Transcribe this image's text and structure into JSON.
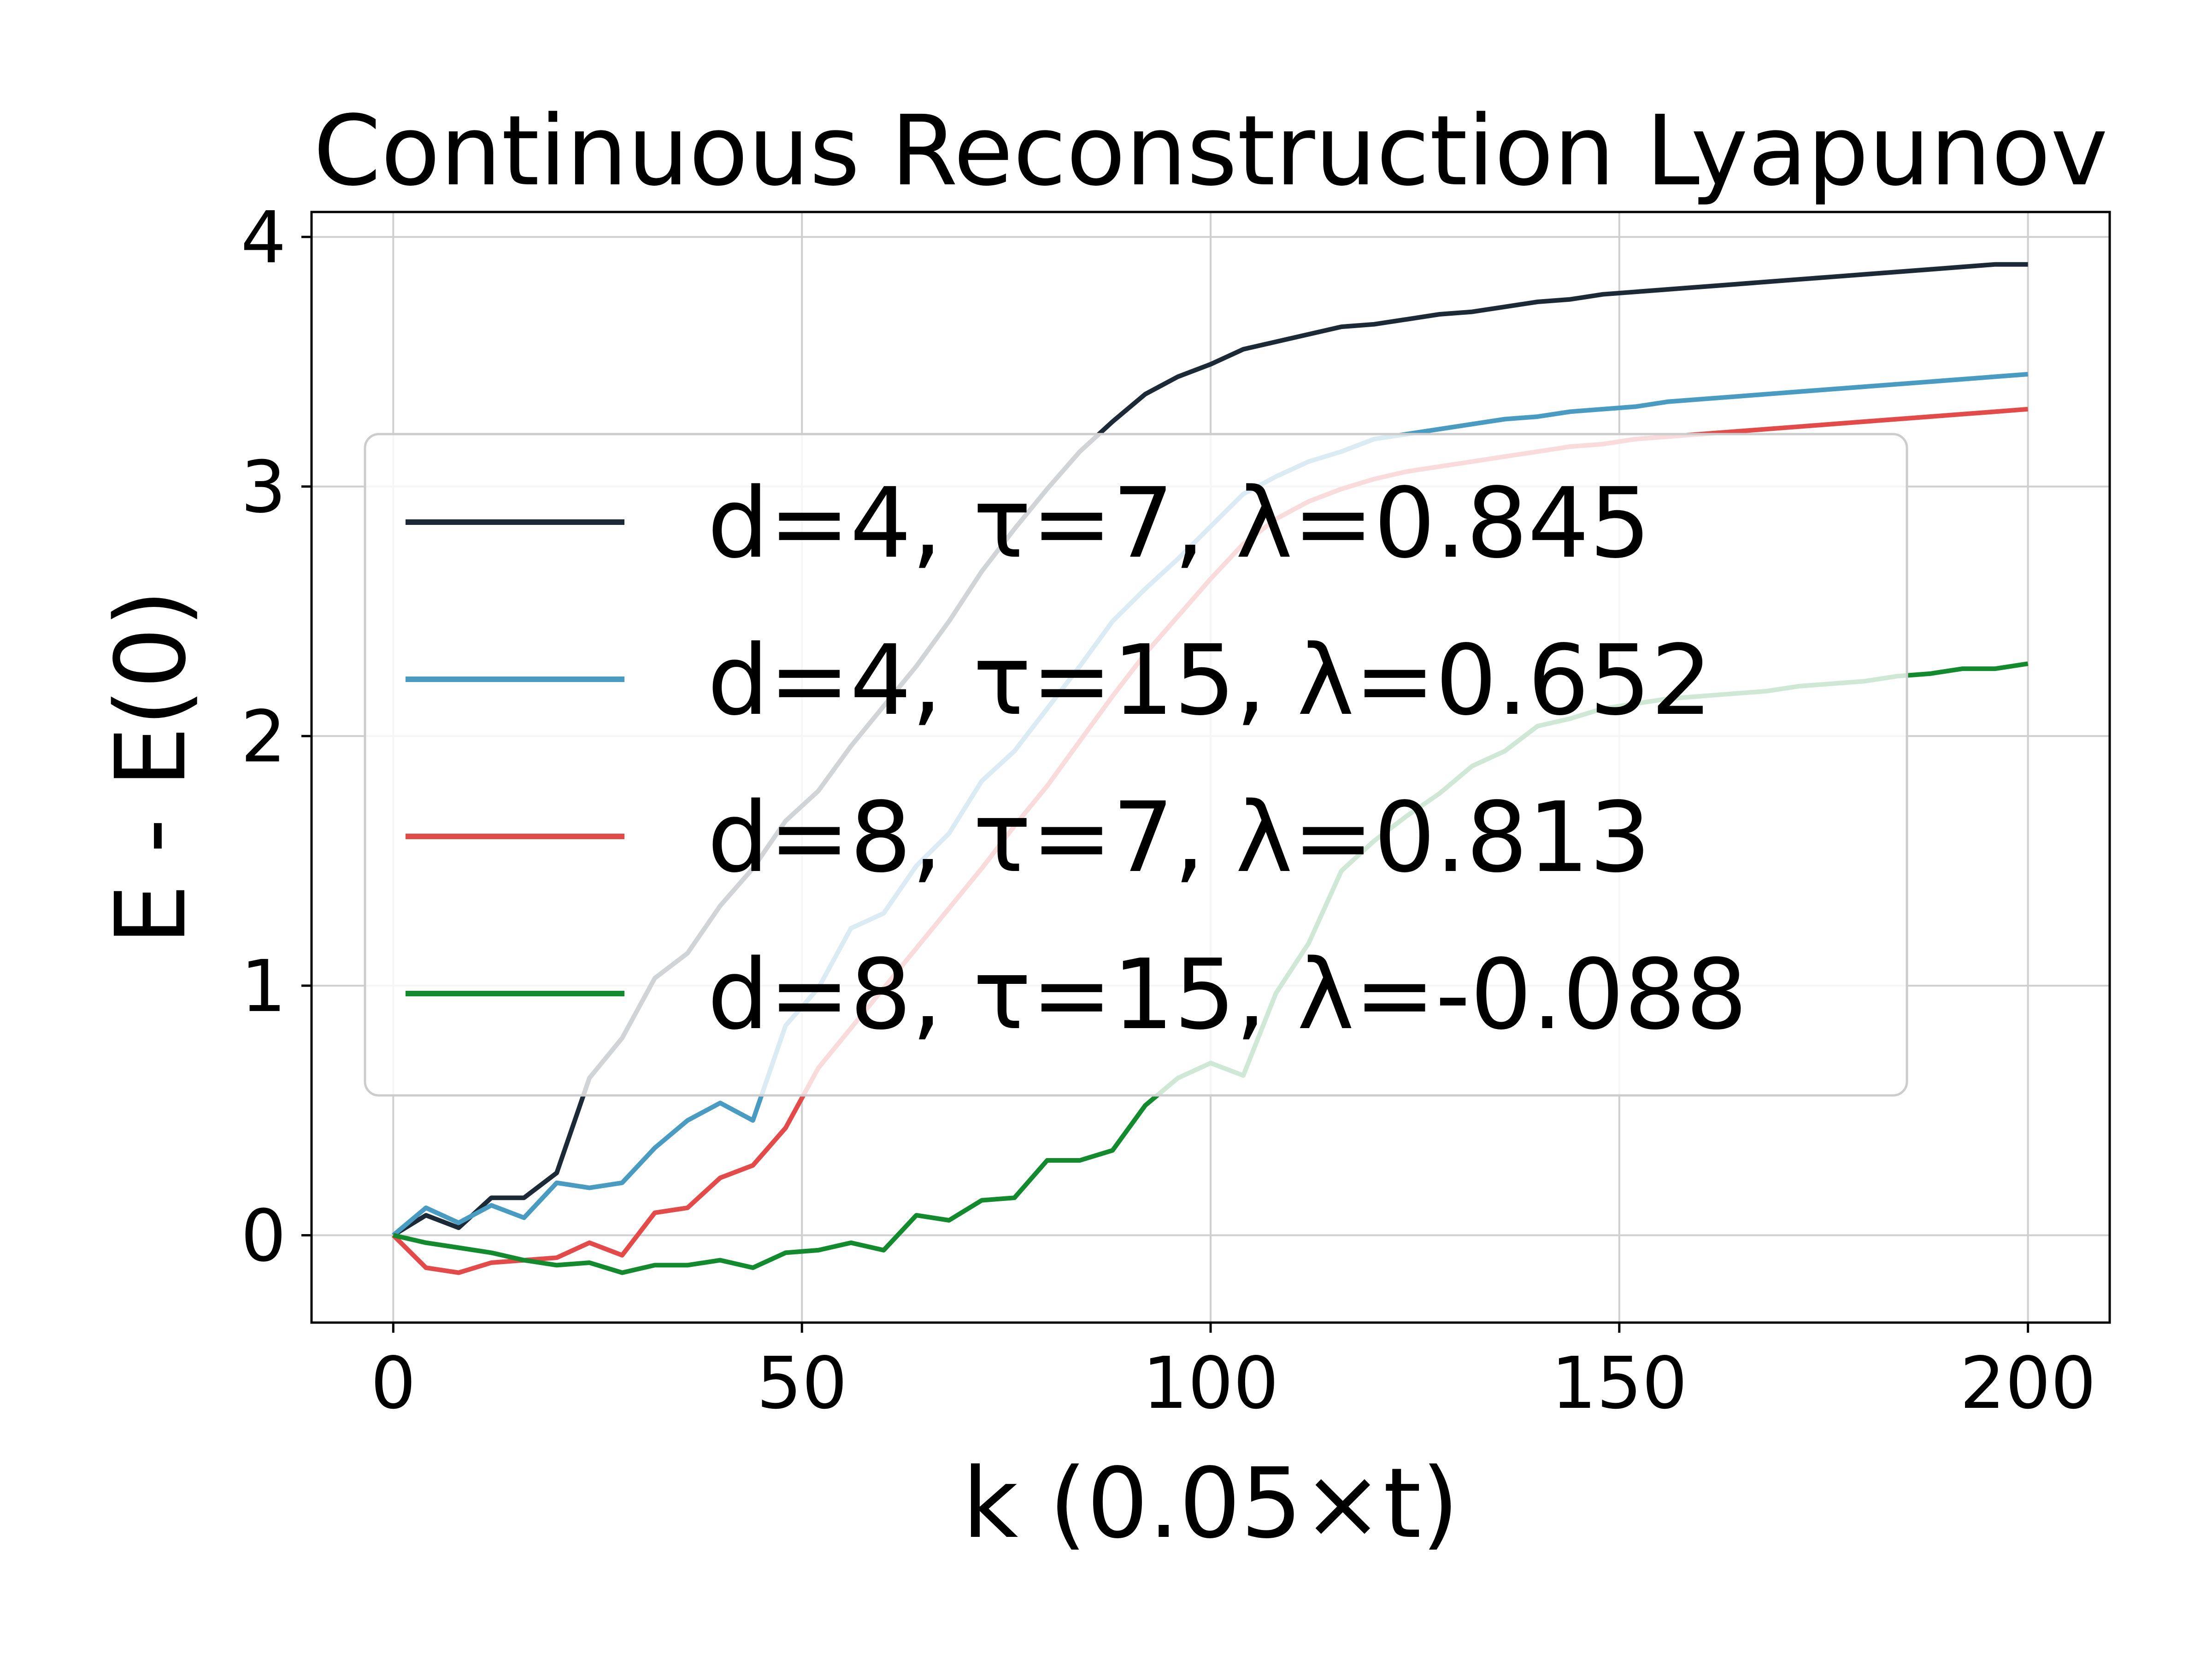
{
  "chart_data": {
    "type": "line",
    "title": "Continuous Reconstruction Lyapunov",
    "xlabel": "k (0.05×t)",
    "ylabel": "E - E(0)",
    "xlim": [
      -10,
      210
    ],
    "ylim": [
      -0.35,
      4.1
    ],
    "xticks": [
      0,
      50,
      100,
      150,
      200
    ],
    "yticks": [
      0,
      1,
      2,
      3,
      4
    ],
    "grid": true,
    "legend": "center",
    "x": [
      0,
      4,
      8,
      12,
      16,
      20,
      24,
      28,
      32,
      36,
      40,
      44,
      48,
      52,
      56,
      60,
      64,
      68,
      72,
      76,
      80,
      84,
      88,
      92,
      96,
      100,
      104,
      108,
      112,
      116,
      120,
      124,
      128,
      132,
      136,
      140,
      144,
      148,
      152,
      156,
      160,
      164,
      168,
      172,
      176,
      180,
      184,
      188,
      192,
      196,
      200
    ],
    "series": [
      {
        "name": "d=4, τ=7, λ=0.845",
        "color": "#1b2a36",
        "values": [
          0.0,
          0.08,
          0.03,
          0.15,
          0.15,
          0.25,
          0.63,
          0.79,
          1.03,
          1.13,
          1.32,
          1.47,
          1.66,
          1.78,
          1.96,
          2.12,
          2.28,
          2.46,
          2.66,
          2.83,
          2.99,
          3.14,
          3.26,
          3.37,
          3.44,
          3.49,
          3.55,
          3.58,
          3.61,
          3.64,
          3.65,
          3.67,
          3.69,
          3.7,
          3.72,
          3.74,
          3.75,
          3.77,
          3.78,
          3.79,
          3.8,
          3.81,
          3.82,
          3.83,
          3.84,
          3.85,
          3.86,
          3.87,
          3.88,
          3.89,
          3.89
        ]
      },
      {
        "name": "d=4, τ=15, λ=0.652",
        "color": "#4a9bc1",
        "values": [
          0.0,
          0.11,
          0.05,
          0.12,
          0.07,
          0.21,
          0.19,
          0.21,
          0.35,
          0.46,
          0.53,
          0.46,
          0.84,
          0.99,
          1.23,
          1.29,
          1.48,
          1.61,
          1.82,
          1.94,
          2.11,
          2.28,
          2.46,
          2.59,
          2.71,
          2.84,
          2.97,
          3.04,
          3.1,
          3.14,
          3.19,
          3.21,
          3.23,
          3.25,
          3.27,
          3.28,
          3.3,
          3.31,
          3.32,
          3.34,
          3.35,
          3.36,
          3.37,
          3.38,
          3.39,
          3.4,
          3.41,
          3.42,
          3.43,
          3.44,
          3.45
        ]
      },
      {
        "name": "d=8, τ=7, λ=0.813",
        "color": "#e34a4a",
        "values": [
          0.0,
          -0.13,
          -0.15,
          -0.11,
          -0.1,
          -0.09,
          -0.03,
          -0.08,
          0.09,
          0.11,
          0.23,
          0.28,
          0.43,
          0.67,
          0.83,
          0.99,
          1.15,
          1.31,
          1.47,
          1.64,
          1.8,
          1.98,
          2.16,
          2.33,
          2.48,
          2.63,
          2.77,
          2.87,
          2.94,
          2.99,
          3.03,
          3.06,
          3.08,
          3.1,
          3.12,
          3.14,
          3.16,
          3.17,
          3.19,
          3.2,
          3.21,
          3.22,
          3.23,
          3.24,
          3.25,
          3.26,
          3.27,
          3.28,
          3.29,
          3.3,
          3.31
        ]
      },
      {
        "name": "d=8, τ=15, λ=-0.088",
        "color": "#138a2e",
        "values": [
          0.0,
          -0.03,
          -0.05,
          -0.07,
          -0.1,
          -0.12,
          -0.11,
          -0.15,
          -0.12,
          -0.12,
          -0.1,
          -0.13,
          -0.07,
          -0.06,
          -0.03,
          -0.06,
          0.08,
          0.06,
          0.14,
          0.15,
          0.3,
          0.3,
          0.34,
          0.52,
          0.63,
          0.69,
          0.64,
          0.97,
          1.17,
          1.46,
          1.58,
          1.68,
          1.77,
          1.88,
          1.94,
          2.04,
          2.07,
          2.11,
          2.13,
          2.15,
          2.16,
          2.17,
          2.18,
          2.2,
          2.21,
          2.22,
          2.24,
          2.25,
          2.27,
          2.27,
          2.29
        ]
      }
    ]
  }
}
